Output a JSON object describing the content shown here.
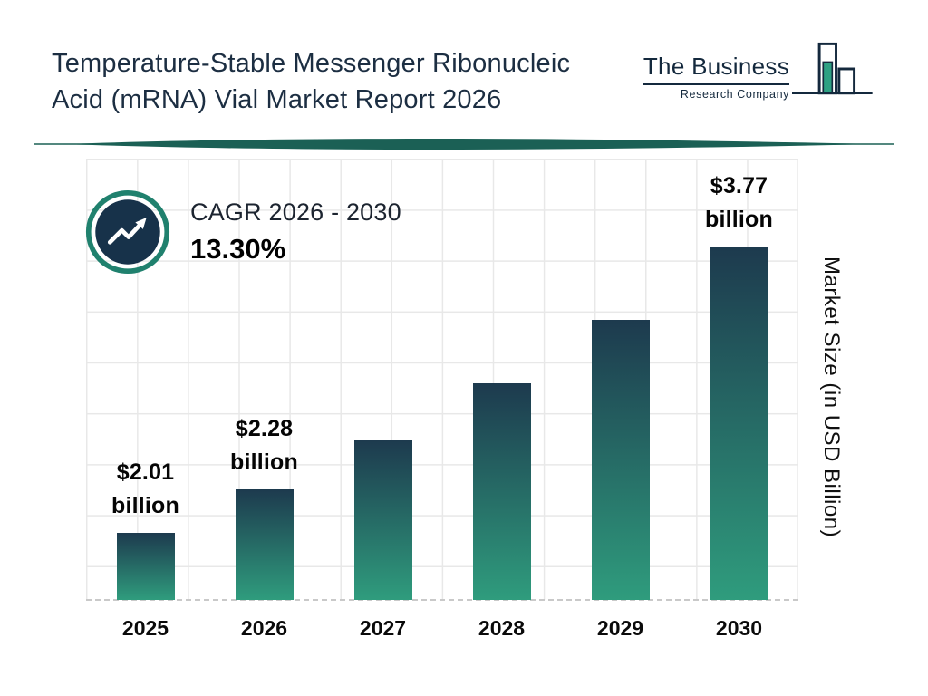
{
  "header": {
    "title_line1": "Temperature-Stable Messenger Ribonucleic",
    "title_line2": "Acid (mRNA) Vial Market Report 2026",
    "logo": {
      "name": "The Business",
      "subtitle": "Research Company"
    }
  },
  "cagr": {
    "label": "CAGR 2026 - 2030",
    "value": "13.30%"
  },
  "chart_data": {
    "type": "bar",
    "title": "Temperature-Stable Messenger Ribonucleic Acid (mRNA) Vial Market Report 2026",
    "categories": [
      "2025",
      "2026",
      "2027",
      "2028",
      "2029",
      "2030"
    ],
    "values": [
      2.01,
      2.28,
      2.58,
      2.93,
      3.32,
      3.77
    ],
    "unit": "USD Billion",
    "value_labels": {
      "2025": [
        "$2.01",
        "billion"
      ],
      "2026": [
        "$2.28",
        "billion"
      ],
      "2030": [
        "$3.77",
        "billion"
      ]
    },
    "ylabel": "Market Size (in USD Billion)",
    "xlabel": "",
    "ylim": [
      1.6,
      3.77
    ],
    "grid": true,
    "legend": false,
    "bar_gradient_top": "#1d3a4e",
    "bar_gradient_bottom": "#2f9c7d"
  },
  "colors": {
    "navy": "#17324a",
    "teal": "#20816e",
    "divider": "#1b6055",
    "grid": "#e8e8e8",
    "title_text": "#1c2e42"
  }
}
